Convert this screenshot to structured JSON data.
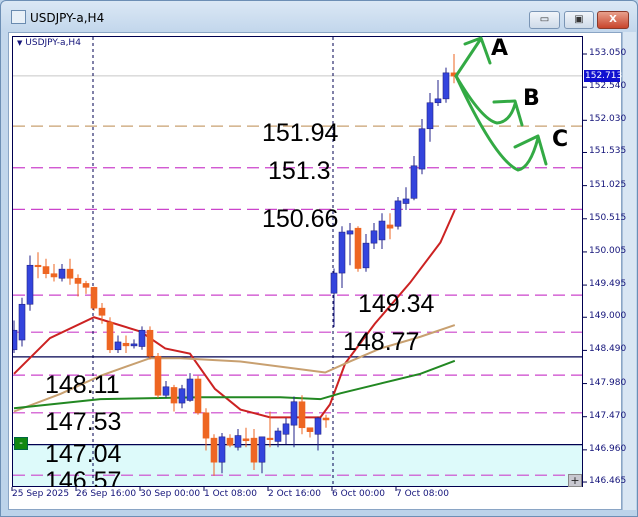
{
  "window": {
    "title": "USDJPY-a,H4",
    "minimize_icon": "minimize-icon",
    "maximize_icon": "restore-icon",
    "close_icon": "close-icon",
    "minimize": "▭",
    "restore": "▣",
    "close": "X"
  },
  "chart_data": {
    "type": "candlestick",
    "symbol_label": "USDJPY-a,H4",
    "current_price": "152.713",
    "ylim": [
      146.38,
      153.33
    ],
    "y_ticks": [
      "153.050",
      "152.540",
      "152.030",
      "151.535",
      "151.025",
      "150.515",
      "150.005",
      "149.495",
      "149.000",
      "148.490",
      "147.980",
      "147.470",
      "146.960",
      "146.465"
    ],
    "x_ticks": [
      {
        "label": "25 Sep 2025",
        "index": 0
      },
      {
        "label": "26 Sep 16:00",
        "index": 8
      },
      {
        "label": "30 Sep 00:00",
        "index": 16
      },
      {
        "label": "1 Oct 08:00",
        "index": 24
      },
      {
        "label": "2 Oct 16:00",
        "index": 32
      },
      {
        "label": "6 Oct 00:00",
        "index": 40
      },
      {
        "label": "7 Oct 08:00",
        "index": 48
      }
    ],
    "colors": {
      "bull": "#3344dd",
      "bear": "#ee6622",
      "ma_fast": "#cc2222",
      "ma_mid": "#c8a070",
      "ma_slow": "#228822",
      "level": "#cc44cc",
      "solid_level": "#000050",
      "zone": "#ddfafa",
      "arrow": "#33aa44"
    },
    "candles": [
      [
        148.5,
        148.8,
        148.95,
        148.45
      ],
      [
        148.65,
        149.2,
        149.3,
        148.55
      ],
      [
        149.2,
        149.8,
        149.95,
        149.1
      ],
      [
        149.8,
        149.78,
        150.0,
        149.6
      ],
      [
        149.78,
        149.67,
        149.9,
        149.6
      ],
      [
        149.67,
        149.62,
        149.82,
        149.55
      ],
      [
        149.6,
        149.74,
        149.82,
        149.55
      ],
      [
        149.74,
        149.6,
        149.9,
        149.5
      ],
      [
        149.6,
        149.52,
        149.66,
        149.32
      ],
      [
        149.52,
        149.46,
        149.56,
        149.36
      ],
      [
        149.46,
        149.14,
        149.47,
        149.1
      ],
      [
        149.14,
        149.03,
        149.22,
        148.9
      ],
      [
        148.92,
        148.5,
        149.0,
        148.45
      ],
      [
        148.5,
        148.62,
        148.72,
        148.45
      ],
      [
        148.6,
        148.56,
        148.72,
        148.45
      ],
      [
        148.56,
        148.59,
        148.66,
        148.52
      ],
      [
        148.55,
        148.8,
        148.86,
        148.5
      ],
      [
        148.8,
        148.4,
        148.86,
        148.35
      ],
      [
        148.4,
        147.8,
        148.45,
        147.76
      ],
      [
        147.8,
        147.93,
        148.02,
        147.76
      ],
      [
        147.92,
        147.68,
        147.96,
        147.55
      ],
      [
        147.68,
        147.9,
        147.96,
        147.6
      ],
      [
        147.72,
        148.05,
        148.14,
        147.7
      ],
      [
        148.05,
        147.53,
        148.1,
        147.5
      ],
      [
        147.53,
        147.14,
        147.6,
        146.95
      ],
      [
        147.14,
        146.77,
        147.2,
        146.56
      ],
      [
        146.77,
        147.16,
        147.22,
        146.6
      ],
      [
        147.14,
        147.03,
        147.2,
        147.0
      ],
      [
        147.0,
        147.18,
        147.28,
        146.95
      ],
      [
        147.13,
        147.1,
        147.3,
        147.0
      ],
      [
        147.14,
        146.77,
        147.28,
        146.65
      ],
      [
        146.77,
        147.16,
        147.16,
        146.6
      ],
      [
        147.14,
        147.12,
        147.55,
        147.0
      ],
      [
        147.09,
        147.25,
        147.3,
        147.0
      ],
      [
        147.2,
        147.36,
        147.45,
        147.05
      ],
      [
        147.34,
        147.7,
        147.78,
        147.0
      ],
      [
        147.7,
        147.3,
        147.8,
        147.2
      ],
      [
        147.3,
        147.24,
        147.3,
        147.15
      ],
      [
        147.2,
        147.45,
        147.47,
        146.95
      ],
      [
        147.45,
        147.42,
        147.5,
        147.3
      ],
      [
        149.37,
        149.68,
        149.75,
        148.85
      ],
      [
        149.68,
        150.31,
        150.4,
        149.45
      ],
      [
        150.28,
        150.33,
        150.45,
        149.8
      ],
      [
        150.37,
        149.75,
        150.4,
        149.7
      ],
      [
        149.76,
        150.14,
        150.28,
        149.7
      ],
      [
        150.14,
        150.33,
        150.45,
        150.05
      ],
      [
        150.19,
        150.48,
        150.6,
        150.05
      ],
      [
        150.42,
        150.37,
        150.6,
        150.2
      ],
      [
        150.4,
        150.79,
        150.85,
        150.35
      ],
      [
        150.75,
        150.82,
        151.0,
        150.65
      ],
      [
        150.83,
        151.33,
        151.48,
        150.8
      ],
      [
        151.28,
        151.9,
        152.05,
        151.2
      ],
      [
        151.9,
        152.3,
        152.45,
        151.7
      ],
      [
        152.3,
        152.36,
        152.65,
        152.25
      ],
      [
        152.36,
        152.76,
        152.84,
        152.3
      ],
      [
        152.76,
        152.71,
        153.05,
        152.6
      ]
    ],
    "moving_averages": [
      {
        "color": "#cc2222",
        "points": [
          [
            0,
            148.13
          ],
          [
            4.5,
            148.68
          ],
          [
            10,
            149.0
          ],
          [
            15.8,
            148.78
          ],
          [
            18.9,
            148.52
          ],
          [
            22,
            148.44
          ],
          [
            25.1,
            147.9
          ],
          [
            28.3,
            147.58
          ],
          [
            32,
            147.46
          ],
          [
            38.3,
            147.46
          ],
          [
            39.5,
            147.66
          ],
          [
            41.4,
            148.29
          ],
          [
            45.1,
            148.9
          ],
          [
            49.5,
            149.53
          ],
          [
            53.3,
            150.15
          ],
          [
            55.1,
            150.65
          ]
        ]
      },
      {
        "color": "#c8a070",
        "points": [
          [
            0,
            147.55
          ],
          [
            5.8,
            147.82
          ],
          [
            10.8,
            148.1
          ],
          [
            17,
            148.37
          ],
          [
            20.8,
            148.37
          ],
          [
            28.3,
            148.32
          ],
          [
            35.8,
            148.2
          ],
          [
            38.9,
            148.15
          ],
          [
            42,
            148.32
          ],
          [
            45.8,
            148.52
          ],
          [
            50.8,
            148.7
          ],
          [
            55.1,
            148.88
          ]
        ]
      },
      {
        "color": "#228822",
        "points": [
          [
            0,
            147.6
          ],
          [
            10.8,
            147.74
          ],
          [
            23.3,
            147.77
          ],
          [
            33.3,
            147.77
          ],
          [
            38.3,
            147.74
          ],
          [
            40.8,
            147.83
          ],
          [
            45.8,
            147.98
          ],
          [
            50.8,
            148.13
          ],
          [
            55.1,
            148.33
          ]
        ]
      }
    ],
    "levels": [
      {
        "price": 151.94,
        "label": "151.94",
        "style": "dashed",
        "color": "#c8a070"
      },
      {
        "price": 151.3,
        "label": "151.3",
        "style": "dashed",
        "color": "#cc44cc"
      },
      {
        "price": 150.66,
        "label": "150.66",
        "style": "dashed",
        "color": "#cc44cc"
      },
      {
        "price": 149.34,
        "label": "149.34",
        "style": "dashed",
        "color": "#cc44cc"
      },
      {
        "price": 148.77,
        "label": "148.77",
        "style": "dashed",
        "color": "#cc44cc"
      },
      {
        "price": 148.39,
        "label": "",
        "style": "solid",
        "color": "#000050"
      },
      {
        "price": 148.11,
        "label": "148.11",
        "style": "dashed",
        "color": "#cc44cc"
      },
      {
        "price": 147.53,
        "label": "147.53",
        "style": "dashed",
        "color": "#cc44cc"
      },
      {
        "price": 147.04,
        "label": "147.04",
        "style": "solid",
        "color": "#000050"
      },
      {
        "price": 146.57,
        "label": "146.57",
        "style": "dashed",
        "color": "#cc44cc"
      }
    ],
    "vertical_separators": [
      10,
      40
    ],
    "annotations": {
      "a": "A",
      "b": "B",
      "c": "C"
    }
  },
  "controls": {
    "collapse": "-",
    "expand": "+"
  }
}
